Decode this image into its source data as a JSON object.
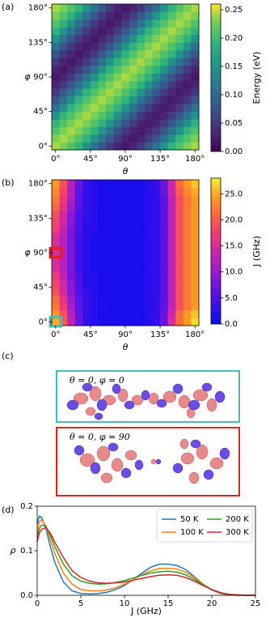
{
  "chart_data": [
    {
      "type": "heatmap",
      "panel_label": "(a)",
      "xlabel": "θ",
      "ylabel": "φ",
      "colorbar_label": "Energy (eV)",
      "colormap": "viridis",
      "x": [
        0,
        10,
        20,
        30,
        40,
        50,
        60,
        70,
        80,
        90,
        100,
        110,
        120,
        130,
        140,
        150,
        160,
        170,
        180
      ],
      "y": [
        0,
        10,
        20,
        30,
        40,
        50,
        60,
        70,
        80,
        90,
        100,
        110,
        120,
        130,
        140,
        150,
        160,
        170,
        180
      ],
      "xlim": [
        -5,
        185
      ],
      "ylim": [
        -5,
        185
      ],
      "xticks": [
        {
          "value": 0,
          "label": "0°"
        },
        {
          "value": 45,
          "label": "45°"
        },
        {
          "value": 90,
          "label": "90°"
        },
        {
          "value": 135,
          "label": "135°"
        },
        {
          "value": 180,
          "label": "180°"
        }
      ],
      "yticks": [
        {
          "value": 0,
          "label": "0°"
        },
        {
          "value": 45,
          "label": "45°"
        },
        {
          "value": 90,
          "label": "90°"
        },
        {
          "value": 135,
          "label": "135°"
        },
        {
          "value": 180,
          "label": "180°"
        }
      ],
      "zlim": [
        0,
        0.26
      ],
      "colorbar_ticks": [
        {
          "value": 0,
          "label": "0.00"
        },
        0.05,
        {
          "value": 0.1,
          "label": "0.10"
        },
        0.15,
        {
          "value": 0.2,
          "label": "0.20"
        },
        0.25
      ],
      "z": [
        [
          0.24,
          0.23,
          0.21,
          0.19,
          0.15,
          0.11,
          0.08,
          0.05,
          0.03,
          0.02,
          0.03,
          0.05,
          0.08,
          0.11,
          0.15,
          0.19,
          0.21,
          0.23,
          0.24
        ],
        [
          0.23,
          0.24,
          0.23,
          0.21,
          0.19,
          0.15,
          0.11,
          0.08,
          0.05,
          0.03,
          0.02,
          0.03,
          0.05,
          0.08,
          0.11,
          0.15,
          0.19,
          0.21,
          0.23
        ],
        [
          0.21,
          0.23,
          0.24,
          0.23,
          0.21,
          0.19,
          0.15,
          0.11,
          0.08,
          0.05,
          0.03,
          0.02,
          0.03,
          0.05,
          0.08,
          0.11,
          0.15,
          0.19,
          0.21
        ],
        [
          0.19,
          0.21,
          0.23,
          0.24,
          0.23,
          0.21,
          0.19,
          0.15,
          0.11,
          0.08,
          0.05,
          0.03,
          0.02,
          0.03,
          0.05,
          0.08,
          0.11,
          0.15,
          0.19
        ],
        [
          0.15,
          0.19,
          0.21,
          0.23,
          0.24,
          0.23,
          0.21,
          0.19,
          0.15,
          0.11,
          0.08,
          0.05,
          0.03,
          0.02,
          0.03,
          0.05,
          0.08,
          0.11,
          0.15
        ],
        [
          0.11,
          0.15,
          0.19,
          0.21,
          0.23,
          0.24,
          0.23,
          0.21,
          0.19,
          0.15,
          0.11,
          0.08,
          0.05,
          0.03,
          0.02,
          0.03,
          0.05,
          0.08,
          0.11
        ],
        [
          0.08,
          0.11,
          0.15,
          0.19,
          0.21,
          0.23,
          0.24,
          0.23,
          0.21,
          0.19,
          0.15,
          0.11,
          0.08,
          0.05,
          0.03,
          0.02,
          0.03,
          0.05,
          0.08
        ],
        [
          0.05,
          0.08,
          0.11,
          0.15,
          0.19,
          0.21,
          0.23,
          0.24,
          0.23,
          0.21,
          0.19,
          0.15,
          0.11,
          0.08,
          0.05,
          0.03,
          0.02,
          0.03,
          0.05
        ],
        [
          0.03,
          0.05,
          0.08,
          0.11,
          0.15,
          0.19,
          0.21,
          0.23,
          0.24,
          0.23,
          0.21,
          0.19,
          0.15,
          0.11,
          0.08,
          0.05,
          0.03,
          0.02,
          0.03
        ],
        [
          0.02,
          0.03,
          0.05,
          0.08,
          0.11,
          0.15,
          0.19,
          0.21,
          0.23,
          0.24,
          0.23,
          0.21,
          0.19,
          0.15,
          0.11,
          0.08,
          0.05,
          0.03,
          0.02
        ],
        [
          0.03,
          0.02,
          0.03,
          0.05,
          0.08,
          0.11,
          0.15,
          0.19,
          0.21,
          0.23,
          0.24,
          0.23,
          0.21,
          0.19,
          0.15,
          0.11,
          0.08,
          0.05,
          0.03
        ],
        [
          0.05,
          0.03,
          0.02,
          0.03,
          0.05,
          0.08,
          0.11,
          0.15,
          0.19,
          0.21,
          0.23,
          0.24,
          0.23,
          0.21,
          0.19,
          0.15,
          0.11,
          0.08,
          0.05
        ],
        [
          0.08,
          0.05,
          0.03,
          0.02,
          0.03,
          0.05,
          0.08,
          0.11,
          0.15,
          0.19,
          0.21,
          0.23,
          0.24,
          0.23,
          0.21,
          0.19,
          0.15,
          0.11,
          0.08
        ],
        [
          0.11,
          0.08,
          0.05,
          0.03,
          0.02,
          0.03,
          0.05,
          0.08,
          0.11,
          0.15,
          0.19,
          0.21,
          0.23,
          0.24,
          0.23,
          0.21,
          0.19,
          0.15,
          0.11
        ],
        [
          0.15,
          0.11,
          0.08,
          0.05,
          0.03,
          0.02,
          0.03,
          0.05,
          0.08,
          0.11,
          0.15,
          0.19,
          0.21,
          0.23,
          0.24,
          0.23,
          0.21,
          0.19,
          0.15
        ],
        [
          0.19,
          0.15,
          0.11,
          0.08,
          0.05,
          0.03,
          0.02,
          0.03,
          0.05,
          0.08,
          0.11,
          0.15,
          0.19,
          0.21,
          0.23,
          0.24,
          0.23,
          0.21,
          0.19
        ],
        [
          0.21,
          0.19,
          0.15,
          0.11,
          0.08,
          0.05,
          0.03,
          0.02,
          0.03,
          0.05,
          0.08,
          0.11,
          0.15,
          0.19,
          0.21,
          0.23,
          0.24,
          0.23,
          0.21
        ],
        [
          0.23,
          0.21,
          0.19,
          0.15,
          0.11,
          0.08,
          0.05,
          0.03,
          0.02,
          0.03,
          0.05,
          0.08,
          0.11,
          0.15,
          0.19,
          0.21,
          0.23,
          0.24,
          0.23
        ],
        [
          0.24,
          0.23,
          0.21,
          0.19,
          0.15,
          0.11,
          0.08,
          0.05,
          0.03,
          0.02,
          0.03,
          0.05,
          0.08,
          0.11,
          0.15,
          0.19,
          0.21,
          0.23,
          0.24
        ]
      ]
    },
    {
      "type": "heatmap",
      "panel_label": "(b)",
      "xlabel": "θ",
      "ylabel": "φ",
      "colorbar_label": "J (GHz)",
      "colormap": "plasma",
      "x": [
        0,
        10,
        20,
        30,
        40,
        50,
        60,
        70,
        80,
        90,
        100,
        110,
        120,
        130,
        140,
        150,
        160,
        170,
        180
      ],
      "y": [
        0,
        10,
        20,
        30,
        40,
        50,
        60,
        70,
        80,
        90,
        100,
        110,
        120,
        130,
        140,
        150,
        160,
        170,
        180
      ],
      "xlim": [
        -5,
        185
      ],
      "ylim": [
        -5,
        185
      ],
      "xticks": [
        {
          "value": 0,
          "label": "0°"
        },
        {
          "value": 45,
          "label": "45°"
        },
        {
          "value": 90,
          "label": "90°"
        },
        {
          "value": 135,
          "label": "135°"
        },
        {
          "value": 180,
          "label": "180°"
        }
      ],
      "yticks": [
        {
          "value": 0,
          "label": "0°"
        },
        {
          "value": 45,
          "label": "45°"
        },
        {
          "value": 90,
          "label": "90°"
        },
        {
          "value": 135,
          "label": "135°"
        },
        {
          "value": 180,
          "label": "180°"
        }
      ],
      "zlim": [
        0,
        28
      ],
      "colorbar_ticks": [
        {
          "value": 0,
          "label": "0.0"
        },
        {
          "value": 5,
          "label": "5.0"
        },
        {
          "value": 10,
          "label": "10.0"
        },
        {
          "value": 15,
          "label": "15.0"
        },
        {
          "value": 20,
          "label": "20.0"
        },
        {
          "value": 25,
          "label": "25.0"
        }
      ],
      "highlights": [
        {
          "theta": 0,
          "phi": 90,
          "color": "#e3201b"
        },
        {
          "theta": 0,
          "phi": 0,
          "color": "#4bb8b8"
        }
      ],
      "z": [
        [
          25,
          20,
          13,
          7,
          3,
          2,
          1,
          1,
          1,
          1,
          1,
          1,
          2,
          3,
          7,
          15,
          21,
          24,
          27
        ],
        [
          24,
          19,
          12,
          7,
          3,
          2,
          1,
          1,
          1,
          1,
          1,
          1,
          2,
          3,
          7,
          14,
          21,
          24,
          26
        ],
        [
          22,
          17,
          11,
          6,
          3,
          2,
          1,
          1,
          1,
          1,
          1,
          1,
          2,
          3,
          6,
          13,
          19,
          22,
          24
        ],
        [
          21,
          16,
          10,
          6,
          3,
          2,
          1,
          1,
          1,
          1,
          1,
          1,
          2,
          3,
          6,
          13,
          19,
          22,
          24
        ],
        [
          19,
          14,
          9,
          5,
          3,
          2,
          1,
          1,
          1,
          1,
          1,
          1,
          2,
          3,
          6,
          13,
          19,
          22,
          24
        ],
        [
          18,
          14,
          9,
          5,
          2,
          2,
          1,
          1,
          1,
          1,
          1,
          1,
          2,
          3,
          6,
          13,
          19,
          22,
          24
        ],
        [
          17,
          13,
          8,
          5,
          2,
          2,
          1,
          1,
          1,
          1,
          1,
          1,
          2,
          3,
          6,
          13,
          19,
          22,
          24
        ],
        [
          15,
          12,
          8,
          4,
          2,
          1,
          1,
          1,
          1,
          1,
          1,
          1,
          2,
          3,
          6,
          13,
          19,
          22,
          24
        ],
        [
          15,
          12,
          8,
          4,
          2,
          1,
          1,
          1,
          1,
          1,
          1,
          1,
          2,
          3,
          6,
          13,
          19,
          22,
          24
        ],
        [
          15,
          12,
          8,
          4,
          2,
          1,
          1,
          1,
          1,
          1,
          1,
          1,
          2,
          3,
          6,
          13,
          19,
          22,
          24
        ],
        [
          15,
          12,
          8,
          4,
          2,
          1,
          1,
          1,
          1,
          1,
          1,
          1,
          2,
          3,
          6,
          13,
          19,
          22,
          24
        ],
        [
          15,
          12,
          8,
          4,
          2,
          1,
          1,
          1,
          1,
          1,
          1,
          1,
          2,
          3,
          6,
          13,
          19,
          22,
          24
        ],
        [
          17,
          13,
          8,
          5,
          2,
          2,
          1,
          1,
          1,
          1,
          1,
          1,
          2,
          3,
          6,
          13,
          19,
          22,
          24
        ],
        [
          18,
          14,
          9,
          5,
          2,
          2,
          1,
          1,
          1,
          1,
          1,
          1,
          2,
          3,
          6,
          13,
          19,
          22,
          24
        ],
        [
          19,
          14,
          9,
          5,
          3,
          2,
          1,
          1,
          1,
          1,
          1,
          1,
          2,
          3,
          6,
          13,
          19,
          22,
          24
        ],
        [
          21,
          16,
          10,
          6,
          3,
          2,
          1,
          1,
          1,
          1,
          1,
          1,
          2,
          3,
          6,
          13,
          19,
          22,
          24
        ],
        [
          22,
          17,
          11,
          6,
          3,
          2,
          1,
          1,
          1,
          1,
          1,
          1,
          2,
          3,
          6,
          13,
          19,
          22,
          24
        ],
        [
          23,
          18,
          12,
          6,
          3,
          2,
          1,
          1,
          1,
          1,
          1,
          1,
          2,
          3,
          7,
          14,
          20,
          23,
          25
        ],
        [
          24,
          19,
          12,
          7,
          3,
          2,
          1,
          1,
          1,
          1,
          1,
          1,
          2,
          3,
          7,
          14,
          21,
          24,
          26
        ]
      ]
    },
    {
      "type": "illustration",
      "panel_label": "(c)",
      "boxes": [
        {
          "label": "θ = 0, φ = 0",
          "color": "#4bb8b8"
        },
        {
          "label": "θ = 0, φ = 90",
          "color": "#e3201b"
        }
      ]
    },
    {
      "type": "line",
      "panel_label": "(d)",
      "xlabel": "J (GHz)",
      "ylabel": "ρ",
      "x": [
        0,
        0.25,
        0.5,
        1,
        1.5,
        2,
        3,
        4,
        5,
        6,
        7,
        8,
        9,
        10,
        11,
        12,
        13,
        14,
        15,
        16,
        17,
        18,
        19,
        20,
        21,
        22,
        23,
        24,
        25
      ],
      "xlim": [
        0,
        25
      ],
      "ylim": [
        0,
        0.2
      ],
      "xticks": [
        0,
        5,
        10,
        15,
        20,
        25
      ],
      "yticks": [
        {
          "value": 0,
          "label": "0.0"
        },
        0.1,
        0.2
      ],
      "legend": "upper right",
      "series": [
        {
          "name": "50 K",
          "color": "#1f77b4",
          "values": [
            0.16,
            0.178,
            0.175,
            0.15,
            0.11,
            0.075,
            0.03,
            0.01,
            0.004,
            0.003,
            0.004,
            0.007,
            0.013,
            0.022,
            0.035,
            0.05,
            0.063,
            0.07,
            0.07,
            0.067,
            0.058,
            0.042,
            0.025,
            0.012,
            0.004,
            0.001,
            0,
            0,
            0
          ]
        },
        {
          "name": "100 K",
          "color": "#ff7f0e",
          "values": [
            0.14,
            0.165,
            0.17,
            0.155,
            0.125,
            0.095,
            0.05,
            0.025,
            0.013,
            0.01,
            0.01,
            0.012,
            0.017,
            0.025,
            0.035,
            0.046,
            0.055,
            0.06,
            0.061,
            0.059,
            0.052,
            0.04,
            0.025,
            0.013,
            0.005,
            0.002,
            0,
            0,
            0
          ]
        },
        {
          "name": "200 K",
          "color": "#2ca02c",
          "values": [
            0.13,
            0.15,
            0.158,
            0.155,
            0.135,
            0.11,
            0.07,
            0.044,
            0.032,
            0.027,
            0.025,
            0.026,
            0.029,
            0.033,
            0.039,
            0.045,
            0.05,
            0.053,
            0.054,
            0.052,
            0.046,
            0.036,
            0.024,
            0.013,
            0.006,
            0.002,
            0.001,
            0,
            0
          ]
        },
        {
          "name": "300 K",
          "color": "#d62728",
          "values": [
            0.12,
            0.14,
            0.148,
            0.152,
            0.14,
            0.12,
            0.085,
            0.055,
            0.04,
            0.032,
            0.028,
            0.027,
            0.028,
            0.03,
            0.034,
            0.038,
            0.042,
            0.045,
            0.046,
            0.045,
            0.04,
            0.032,
            0.022,
            0.013,
            0.006,
            0.002,
            0.001,
            0,
            0
          ]
        }
      ]
    }
  ]
}
